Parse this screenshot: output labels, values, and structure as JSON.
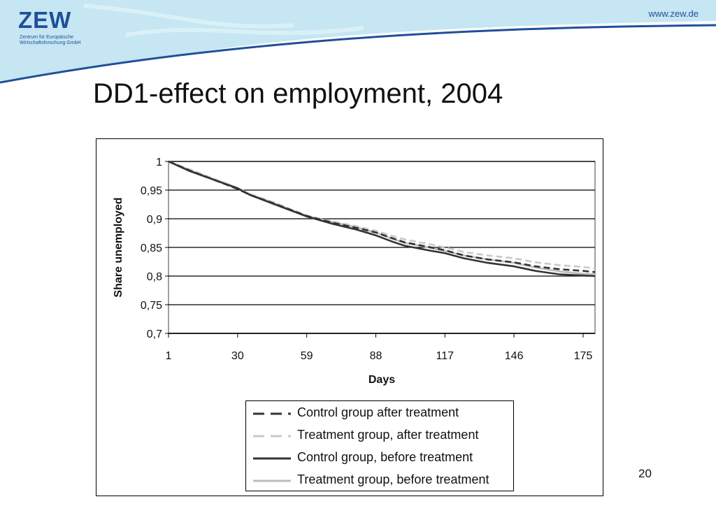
{
  "header": {
    "logo_text": "ZEW",
    "logo_line1": "Zentrum für Europäische",
    "logo_line2": "Wirtschaftsforschung GmbH",
    "url": "www.zew.de",
    "colors": {
      "brand": "#1f4f9a",
      "wave": "#c5e6f2"
    }
  },
  "slide": {
    "title": "DD1-effect on employment, 2004",
    "page_number": "20"
  },
  "chart_data": {
    "type": "line",
    "xlabel": "Days",
    "ylabel": "Share unemployed",
    "xlim": [
      1,
      180
    ],
    "ylim": [
      0.7,
      1
    ],
    "x_ticks": [
      1,
      30,
      59,
      88,
      117,
      146,
      175
    ],
    "y_ticks": [
      "0,7",
      "0,75",
      "0,8",
      "0,85",
      "0,9",
      "0,95",
      "1"
    ],
    "grid": true,
    "legend_position": "bottom",
    "series": [
      {
        "name": "Control group after treatment",
        "style": "dashed",
        "color": "#333333",
        "x": [
          1,
          10,
          20,
          30,
          35,
          45,
          59,
          70,
          80,
          88,
          95,
          100,
          110,
          117,
          125,
          135,
          146,
          155,
          165,
          175,
          180
        ],
        "y": [
          1.0,
          0.984,
          0.968,
          0.952,
          0.942,
          0.927,
          0.905,
          0.893,
          0.884,
          0.876,
          0.866,
          0.859,
          0.851,
          0.845,
          0.836,
          0.829,
          0.824,
          0.817,
          0.812,
          0.809,
          0.807
        ]
      },
      {
        "name": "Treatment group, after treatment",
        "style": "dashed",
        "color": "#c8c8c8",
        "x": [
          1,
          10,
          20,
          30,
          35,
          45,
          59,
          70,
          80,
          88,
          95,
          100,
          110,
          117,
          125,
          135,
          146,
          155,
          165,
          175,
          180
        ],
        "y": [
          1.0,
          0.986,
          0.97,
          0.954,
          0.943,
          0.929,
          0.905,
          0.895,
          0.887,
          0.879,
          0.87,
          0.864,
          0.856,
          0.85,
          0.842,
          0.836,
          0.831,
          0.824,
          0.819,
          0.816,
          0.813
        ]
      },
      {
        "name": "Control group, before treatment",
        "style": "solid",
        "color": "#333333",
        "x": [
          1,
          10,
          20,
          30,
          35,
          45,
          59,
          70,
          80,
          88,
          95,
          100,
          110,
          117,
          125,
          135,
          146,
          155,
          165,
          175,
          180
        ],
        "y": [
          1.0,
          0.983,
          0.968,
          0.953,
          0.942,
          0.926,
          0.904,
          0.891,
          0.881,
          0.871,
          0.86,
          0.853,
          0.845,
          0.84,
          0.831,
          0.823,
          0.817,
          0.809,
          0.803,
          0.801,
          0.8
        ]
      },
      {
        "name": "Treatment group, before treatment",
        "style": "solid",
        "color": "#bdbdbd",
        "x": [
          1,
          10,
          20,
          30,
          35,
          45,
          59,
          70,
          80,
          88,
          95,
          100,
          110,
          117,
          125,
          135,
          146,
          155,
          165,
          175,
          180
        ],
        "y": [
          1.0,
          0.985,
          0.969,
          0.954,
          0.943,
          0.928,
          0.905,
          0.894,
          0.885,
          0.876,
          0.865,
          0.858,
          0.85,
          0.844,
          0.836,
          0.829,
          0.823,
          0.815,
          0.808,
          0.804,
          0.803
        ]
      }
    ]
  }
}
